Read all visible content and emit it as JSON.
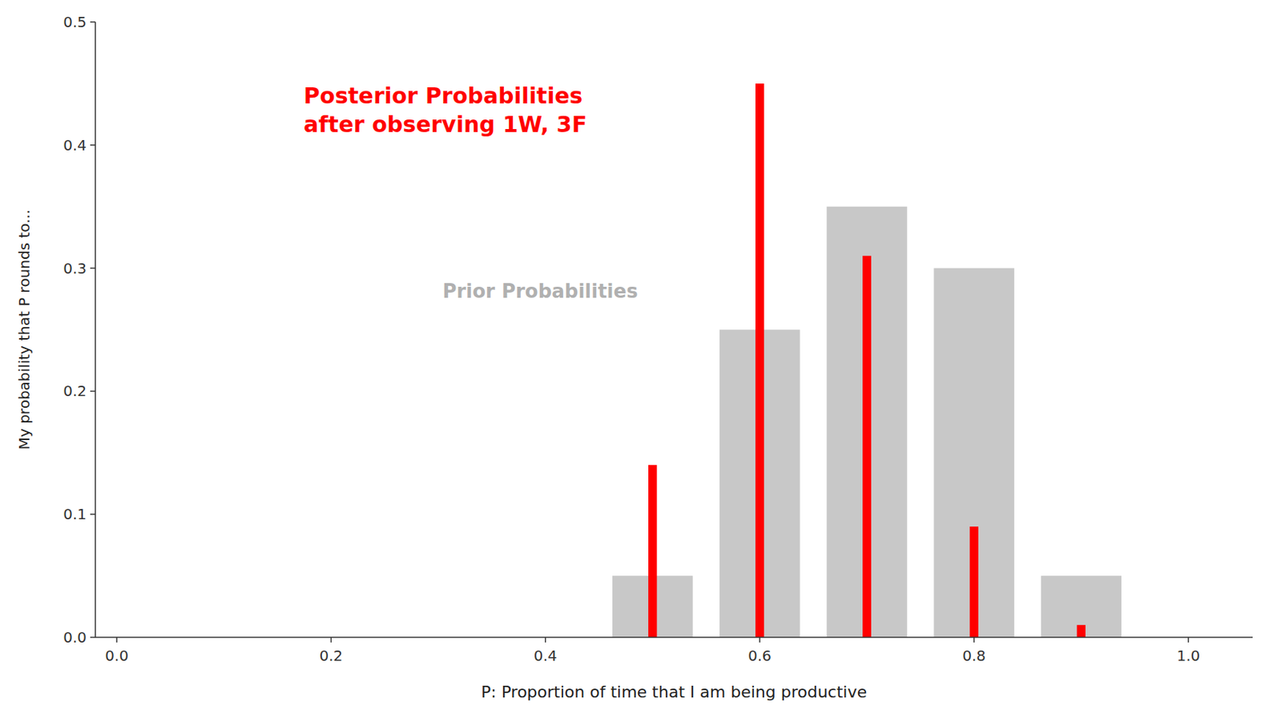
{
  "chart_data": {
    "type": "bar",
    "x_label": "P: Proportion of time that I am being productive",
    "y_label": "My probability that P rounds to...",
    "x": [
      0.5,
      0.6,
      0.7,
      0.8,
      0.9
    ],
    "series": [
      {
        "color": "#c8c8c8",
        "values": [
          0.05,
          0.25,
          0.35,
          0.3,
          0.05
        ]
      },
      {
        "color": "#ff0000",
        "values": [
          0.14,
          0.45,
          0.31,
          0.09,
          0.01
        ]
      }
    ],
    "xlim": [
      -0.02,
      1.06
    ],
    "ylim": [
      0,
      0.5
    ],
    "xticks": [
      {
        "value": 0.0,
        "label": "0.0"
      },
      {
        "value": 0.2,
        "label": "0.2"
      },
      {
        "value": 0.4,
        "label": "0.4"
      },
      {
        "value": 0.6,
        "label": "0.6"
      },
      {
        "value": 0.8,
        "label": "0.8"
      },
      {
        "value": 1.0,
        "label": "1.0"
      }
    ],
    "yticks": [
      {
        "value": 0.0,
        "label": "0.0"
      },
      {
        "value": 0.1,
        "label": "0.1"
      },
      {
        "value": 0.2,
        "label": "0.2"
      },
      {
        "value": 0.3,
        "label": "0.3"
      },
      {
        "value": 0.4,
        "label": "0.4"
      },
      {
        "value": 0.5,
        "label": "0.5"
      }
    ],
    "grid": false,
    "annotations": [
      {
        "text": "Posterior Probabilities\nafter observing 1W, 3F",
        "color": "#ff0000"
      },
      {
        "text": "Prior Probabilities",
        "color": "#b0b0b0"
      }
    ]
  }
}
